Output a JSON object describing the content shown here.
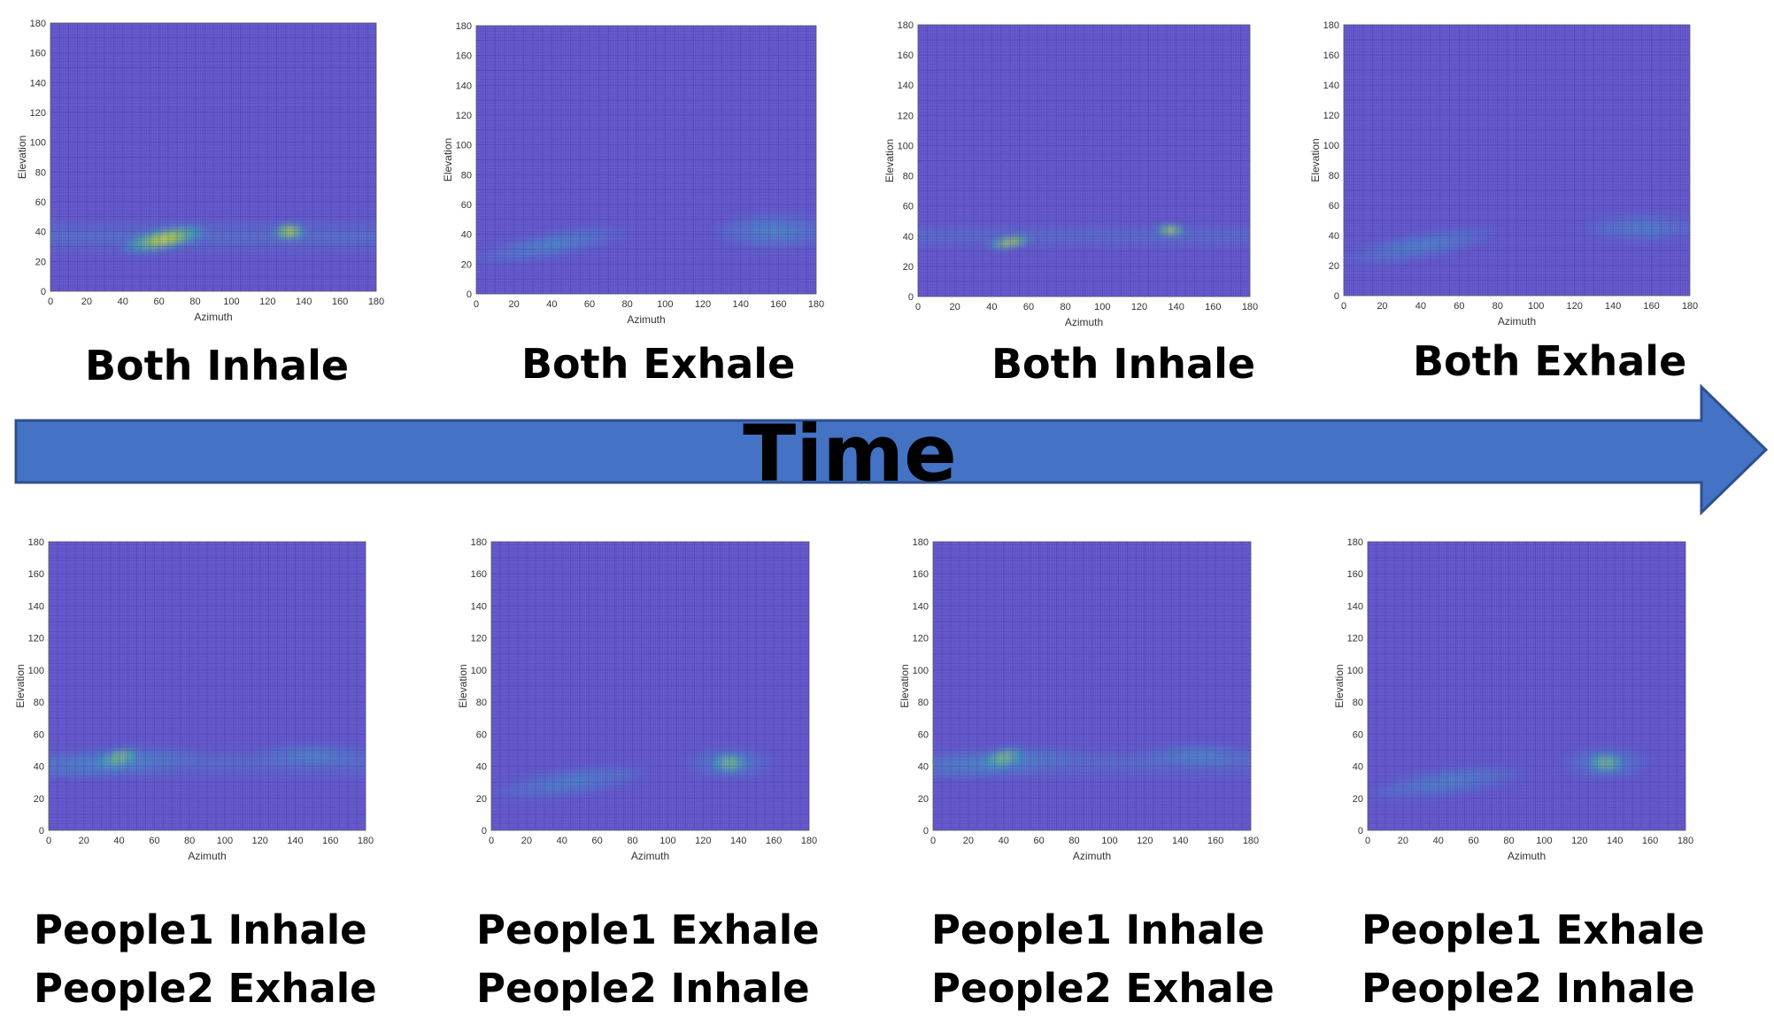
{
  "colors": {
    "plot_background": "#6a5fd2",
    "grid_line": "#3b2c9a",
    "hot_core": "#f6ee2a",
    "hot_mid": "#33c0b0",
    "arrow_fill": "#4472c4",
    "arrow_stroke": "#2f4f8f"
  },
  "timeline": {
    "label": "Time"
  },
  "top_row": [
    {
      "caption": "Both Inhale"
    },
    {
      "caption": "Both Exhale"
    },
    {
      "caption": "Both Inhale"
    },
    {
      "caption": "Both Exhale"
    }
  ],
  "bottom_row": [
    {
      "caption_line1": "People1 Inhale",
      "caption_line2": "People2 Exhale"
    },
    {
      "caption_line1": "People1 Exhale",
      "caption_line2": "People2 Inhale"
    },
    {
      "caption_line1": "People1 Inhale",
      "caption_line2": "People2 Exhale"
    },
    {
      "caption_line1": "People1 Exhale",
      "caption_line2": "People2 Inhale"
    }
  ],
  "chart_data": [
    {
      "type": "heatmap",
      "xlabel": "Azimuth",
      "ylabel": "Elevation",
      "xlim": [
        0,
        180
      ],
      "ylim": [
        0,
        180
      ],
      "xticks": [
        0,
        20,
        40,
        60,
        80,
        100,
        120,
        140,
        160,
        180
      ],
      "yticks": [
        0,
        20,
        40,
        60,
        80,
        100,
        120,
        140,
        160,
        180
      ],
      "band": {
        "y_center": 37,
        "y_halfwidth": 14,
        "intensity": 0.35
      },
      "blobs": [
        {
          "x": 63,
          "y": 35,
          "rx": 26,
          "ry": 8,
          "angle": -12,
          "intensity": 1.0
        },
        {
          "x": 132,
          "y": 40,
          "rx": 10,
          "ry": 6,
          "angle": 0,
          "intensity": 0.85
        }
      ]
    },
    {
      "type": "heatmap",
      "xlabel": "Azimuth",
      "ylabel": "Elevation",
      "xlim": [
        0,
        180
      ],
      "ylim": [
        0,
        180
      ],
      "xticks": [
        0,
        20,
        40,
        60,
        80,
        100,
        120,
        140,
        160,
        180
      ],
      "yticks": [
        0,
        20,
        40,
        60,
        80,
        100,
        120,
        140,
        160,
        180
      ],
      "band": null,
      "blobs": [
        {
          "x": 40,
          "y": 33,
          "rx": 45,
          "ry": 10,
          "angle": -10,
          "intensity": 0.45
        },
        {
          "x": 158,
          "y": 42,
          "rx": 35,
          "ry": 14,
          "angle": 0,
          "intensity": 0.45
        }
      ]
    },
    {
      "type": "heatmap",
      "xlabel": "Azimuth",
      "ylabel": "Elevation",
      "xlim": [
        0,
        180
      ],
      "ylim": [
        0,
        180
      ],
      "xticks": [
        0,
        20,
        40,
        60,
        80,
        100,
        120,
        140,
        160,
        180
      ],
      "yticks": [
        0,
        20,
        40,
        60,
        80,
        100,
        120,
        140,
        160,
        180
      ],
      "band": {
        "y_center": 40,
        "y_halfwidth": 10,
        "intensity": 0.3
      },
      "blobs": [
        {
          "x": 50,
          "y": 36,
          "rx": 14,
          "ry": 4,
          "angle": -10,
          "intensity": 0.9
        },
        {
          "x": 137,
          "y": 44,
          "rx": 9,
          "ry": 4,
          "angle": 0,
          "intensity": 0.9
        }
      ]
    },
    {
      "type": "heatmap",
      "xlabel": "Azimuth",
      "ylabel": "Elevation",
      "xlim": [
        0,
        180
      ],
      "ylim": [
        0,
        180
      ],
      "xticks": [
        0,
        20,
        40,
        60,
        80,
        100,
        120,
        140,
        160,
        180
      ],
      "yticks": [
        0,
        20,
        40,
        60,
        80,
        100,
        120,
        140,
        160,
        180
      ],
      "band": null,
      "blobs": [
        {
          "x": 40,
          "y": 33,
          "rx": 45,
          "ry": 10,
          "angle": -10,
          "intensity": 0.42
        },
        {
          "x": 155,
          "y": 45,
          "rx": 35,
          "ry": 11,
          "angle": 0,
          "intensity": 0.38
        }
      ]
    },
    {
      "type": "heatmap",
      "xlabel": "Azimuth",
      "ylabel": "Elevation",
      "xlim": [
        0,
        180
      ],
      "ylim": [
        0,
        180
      ],
      "xticks": [
        0,
        20,
        40,
        60,
        80,
        100,
        120,
        140,
        160,
        180
      ],
      "yticks": [
        0,
        20,
        40,
        60,
        80,
        100,
        120,
        140,
        160,
        180
      ],
      "band": {
        "y_center": 42,
        "y_halfwidth": 12,
        "intensity": 0.3
      },
      "blobs": [
        {
          "x": 40,
          "y": 45,
          "rx": 13,
          "ry": 6,
          "angle": -15,
          "intensity": 1.0
        },
        {
          "x": 35,
          "y": 42,
          "rx": 55,
          "ry": 10,
          "angle": -5,
          "intensity": 0.4
        },
        {
          "x": 150,
          "y": 47,
          "rx": 35,
          "ry": 8,
          "angle": 0,
          "intensity": 0.38
        }
      ]
    },
    {
      "type": "heatmap",
      "xlabel": "Azimuth",
      "ylabel": "Elevation",
      "xlim": [
        0,
        180
      ],
      "ylim": [
        0,
        180
      ],
      "xticks": [
        0,
        20,
        40,
        60,
        80,
        100,
        120,
        140,
        160,
        180
      ],
      "yticks": [
        0,
        20,
        40,
        60,
        80,
        100,
        120,
        140,
        160,
        180
      ],
      "band": null,
      "blobs": [
        {
          "x": 45,
          "y": 30,
          "rx": 50,
          "ry": 10,
          "angle": -8,
          "intensity": 0.42
        },
        {
          "x": 135,
          "y": 42,
          "rx": 11,
          "ry": 6,
          "angle": 0,
          "intensity": 1.0
        },
        {
          "x": 135,
          "y": 42,
          "rx": 28,
          "ry": 12,
          "angle": 0,
          "intensity": 0.4
        }
      ]
    },
    {
      "type": "heatmap",
      "xlabel": "Azimuth",
      "ylabel": "Elevation",
      "xlim": [
        0,
        180
      ],
      "ylim": [
        0,
        180
      ],
      "xticks": [
        0,
        20,
        40,
        60,
        80,
        100,
        120,
        140,
        160,
        180
      ],
      "yticks": [
        0,
        20,
        40,
        60,
        80,
        100,
        120,
        140,
        160,
        180
      ],
      "band": {
        "y_center": 42,
        "y_halfwidth": 12,
        "intensity": 0.3
      },
      "blobs": [
        {
          "x": 40,
          "y": 45,
          "rx": 13,
          "ry": 6,
          "angle": -15,
          "intensity": 1.0
        },
        {
          "x": 35,
          "y": 42,
          "rx": 55,
          "ry": 10,
          "angle": -5,
          "intensity": 0.4
        },
        {
          "x": 150,
          "y": 47,
          "rx": 35,
          "ry": 8,
          "angle": 0,
          "intensity": 0.38
        }
      ]
    },
    {
      "type": "heatmap",
      "xlabel": "Azimuth",
      "ylabel": "Elevation",
      "xlim": [
        0,
        180
      ],
      "ylim": [
        0,
        180
      ],
      "xticks": [
        0,
        20,
        40,
        60,
        80,
        100,
        120,
        140,
        160,
        180
      ],
      "yticks": [
        0,
        20,
        40,
        60,
        80,
        100,
        120,
        140,
        160,
        180
      ],
      "band": null,
      "blobs": [
        {
          "x": 45,
          "y": 30,
          "rx": 50,
          "ry": 10,
          "angle": -8,
          "intensity": 0.42
        },
        {
          "x": 135,
          "y": 42,
          "rx": 11,
          "ry": 6,
          "angle": 0,
          "intensity": 1.0
        },
        {
          "x": 135,
          "y": 42,
          "rx": 28,
          "ry": 12,
          "angle": 0,
          "intensity": 0.4
        }
      ]
    }
  ]
}
